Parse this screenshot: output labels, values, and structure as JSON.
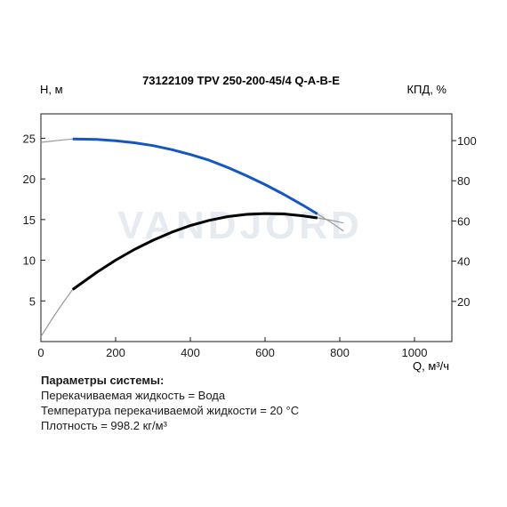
{
  "chart_data": {
    "type": "line",
    "title": "73122109 TPV 250-200-45/4 Q-A-B-E",
    "watermark": "VANDJORD",
    "ylabel_left": "H, м",
    "ylabel_right": "КПД, %",
    "xlabel": "Q, м³/ч",
    "xlim": [
      0,
      1100
    ],
    "ylim_left": [
      0,
      28
    ],
    "ylim_right": [
      0,
      113.3
    ],
    "x_ticks": [
      0,
      200,
      400,
      600,
      800,
      1000
    ],
    "y_ticks_left": [
      5,
      10,
      15,
      20,
      25
    ],
    "y_ticks_right": [
      20,
      40,
      60,
      80,
      100
    ],
    "grid": false,
    "colors": {
      "head": "#1457c4",
      "efficiency": "#000000",
      "extension": "#9a9a9a",
      "watermark": "#e6ebf2"
    },
    "series": [
      {
        "axis": "left",
        "color": "#1457c4",
        "operating": {
          "x": [
            85,
            150,
            200,
            250,
            300,
            350,
            400,
            450,
            500,
            550,
            600,
            650,
            700,
            740
          ],
          "y": [
            24.9,
            24.85,
            24.7,
            24.45,
            24.1,
            23.6,
            23.0,
            22.3,
            21.4,
            20.4,
            19.3,
            18.1,
            16.8,
            15.7
          ]
        },
        "extension": {
          "x": [
            0,
            30,
            60,
            85,
            740,
            775,
            810
          ],
          "y": [
            24.5,
            24.65,
            24.8,
            24.9,
            15.7,
            14.7,
            13.6
          ]
        }
      },
      {
        "axis": "right",
        "color": "#000000",
        "operating": {
          "x": [
            85,
            150,
            200,
            250,
            300,
            350,
            400,
            450,
            500,
            550,
            600,
            650,
            700,
            740
          ],
          "y": [
            25.9,
            34.5,
            40.5,
            45.8,
            50.4,
            54.4,
            57.7,
            60.3,
            62.2,
            63.3,
            63.7,
            63.5,
            62.6,
            61.5
          ]
        },
        "extension": {
          "x": [
            0,
            30,
            60,
            85,
            740,
            775,
            810
          ],
          "y": [
            2.5,
            11.3,
            19.5,
            25.9,
            61.5,
            60.4,
            59.0
          ]
        }
      }
    ]
  },
  "params": {
    "header": "Параметры системы:",
    "lines": [
      "Перекачиваемая жидкость = Вода",
      "Температура перекачиваемой жидкости = 20 °C",
      "Плотность = 998.2 кг/м³"
    ]
  }
}
